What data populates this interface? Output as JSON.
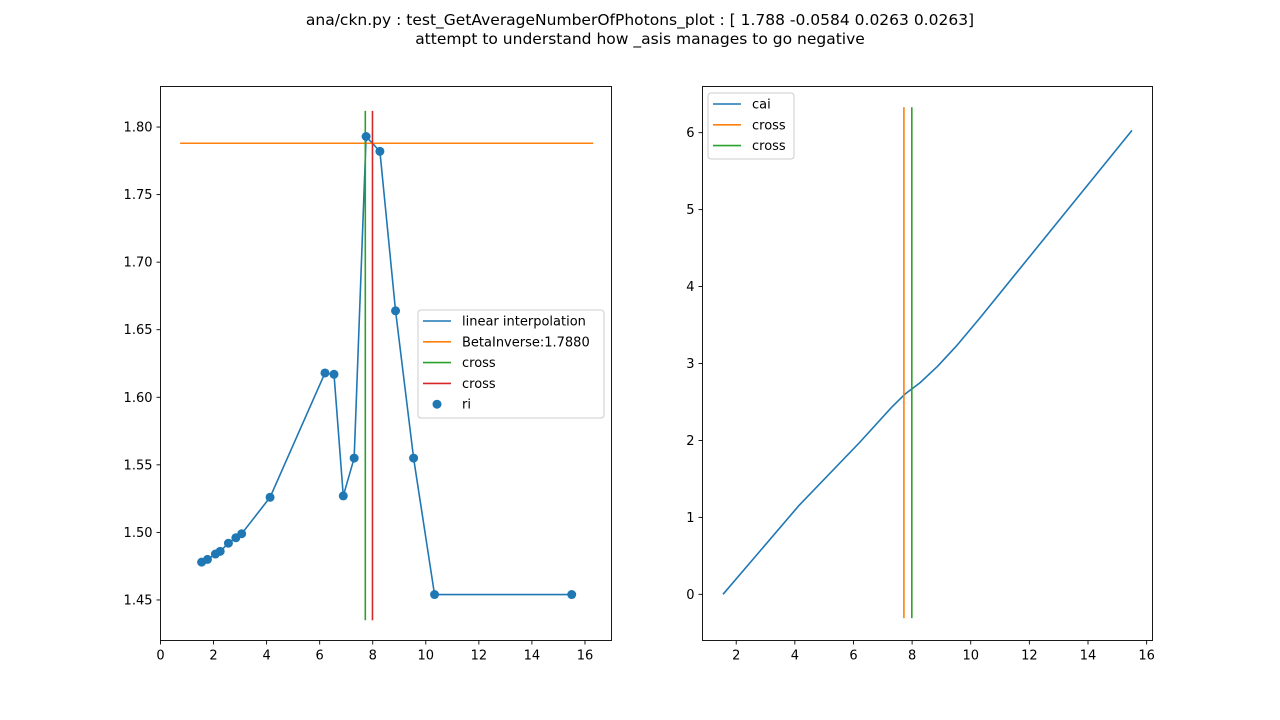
{
  "figure": {
    "title_line1": "ana/ckn.py : test_GetAverageNumberOfPhotons_plot : [ 1.788  -0.0584  0.0263  0.0263]",
    "title_line2": "attempt to understand how _asis manages to go negative"
  },
  "colors": {
    "c0": "#1f77b4",
    "c1": "#ff7f0e",
    "c2": "#2ca02c",
    "c3": "#d62728"
  },
  "chart_data": [
    {
      "type": "line",
      "xlim": [
        0,
        17
      ],
      "ylim": [
        1.42,
        1.83
      ],
      "xticks": [
        0,
        2,
        4,
        6,
        8,
        10,
        12,
        14,
        16
      ],
      "yticks": [
        1.45,
        1.5,
        1.55,
        1.6,
        1.65,
        1.7,
        1.75,
        1.8
      ],
      "ytick_labels": [
        "1.45",
        "1.50",
        "1.55",
        "1.60",
        "1.65",
        "1.70",
        "1.75",
        "1.80"
      ],
      "legend_position": "center-right",
      "series": [
        {
          "name": "linear interpolation",
          "kind": "line",
          "color": "#1f77b4",
          "x": [
            1.55,
            1.77,
            2.07,
            2.25,
            2.56,
            2.84,
            3.06,
            4.13,
            6.2,
            6.54,
            6.89,
            7.3,
            7.75,
            8.27,
            8.86,
            9.54,
            10.33,
            15.5
          ],
          "y": [
            1.478,
            1.48,
            1.484,
            1.486,
            1.492,
            1.496,
            1.499,
            1.526,
            1.618,
            1.617,
            1.527,
            1.555,
            1.793,
            1.782,
            1.664,
            1.555,
            1.454,
            1.454
          ]
        },
        {
          "name": "BetaInverse:1.7880",
          "kind": "hline",
          "color": "#ff7f0e",
          "y": 1.788,
          "x": [
            0.74,
            16.31
          ]
        },
        {
          "name": "cross",
          "kind": "vline",
          "color": "#2ca02c",
          "x": 7.72,
          "y": [
            1.435,
            1.812
          ]
        },
        {
          "name": "cross",
          "kind": "vline",
          "color": "#d62728",
          "x": 7.99,
          "y": [
            1.435,
            1.812
          ]
        },
        {
          "name": "ri",
          "kind": "scatter",
          "color": "#1f77b4",
          "x": [
            1.55,
            1.77,
            2.07,
            2.25,
            2.56,
            2.84,
            3.06,
            4.13,
            6.2,
            6.54,
            6.89,
            7.3,
            7.75,
            8.27,
            8.86,
            9.54,
            10.33,
            15.5
          ],
          "y": [
            1.478,
            1.48,
            1.484,
            1.486,
            1.492,
            1.496,
            1.499,
            1.526,
            1.618,
            1.617,
            1.527,
            1.555,
            1.793,
            1.782,
            1.664,
            1.555,
            1.454,
            1.454
          ]
        }
      ]
    },
    {
      "type": "line",
      "xlim": [
        0.85,
        16.2
      ],
      "ylim": [
        -0.6,
        6.6
      ],
      "xticks": [
        2,
        4,
        6,
        8,
        10,
        12,
        14,
        16
      ],
      "yticks": [
        0,
        1,
        2,
        3,
        4,
        5,
        6
      ],
      "ytick_labels": [
        "0",
        "1",
        "2",
        "3",
        "4",
        "5",
        "6"
      ],
      "legend_position": "upper-left",
      "series": [
        {
          "name": "cai",
          "kind": "line",
          "color": "#1f77b4",
          "x": [
            1.55,
            4.13,
            6.2,
            7.3,
            7.75,
            8.27,
            8.86,
            9.54,
            10.33,
            15.5
          ],
          "y": [
            0.0,
            1.15,
            1.97,
            2.43,
            2.6,
            2.75,
            2.96,
            3.24,
            3.6,
            6.03
          ]
        },
        {
          "name": "cross",
          "kind": "vline",
          "color": "#ff7f0e",
          "x": 7.72,
          "y": [
            -0.31,
            6.33
          ]
        },
        {
          "name": "cross",
          "kind": "vline",
          "color": "#2ca02c",
          "x": 7.99,
          "y": [
            -0.31,
            6.33
          ]
        }
      ]
    }
  ]
}
